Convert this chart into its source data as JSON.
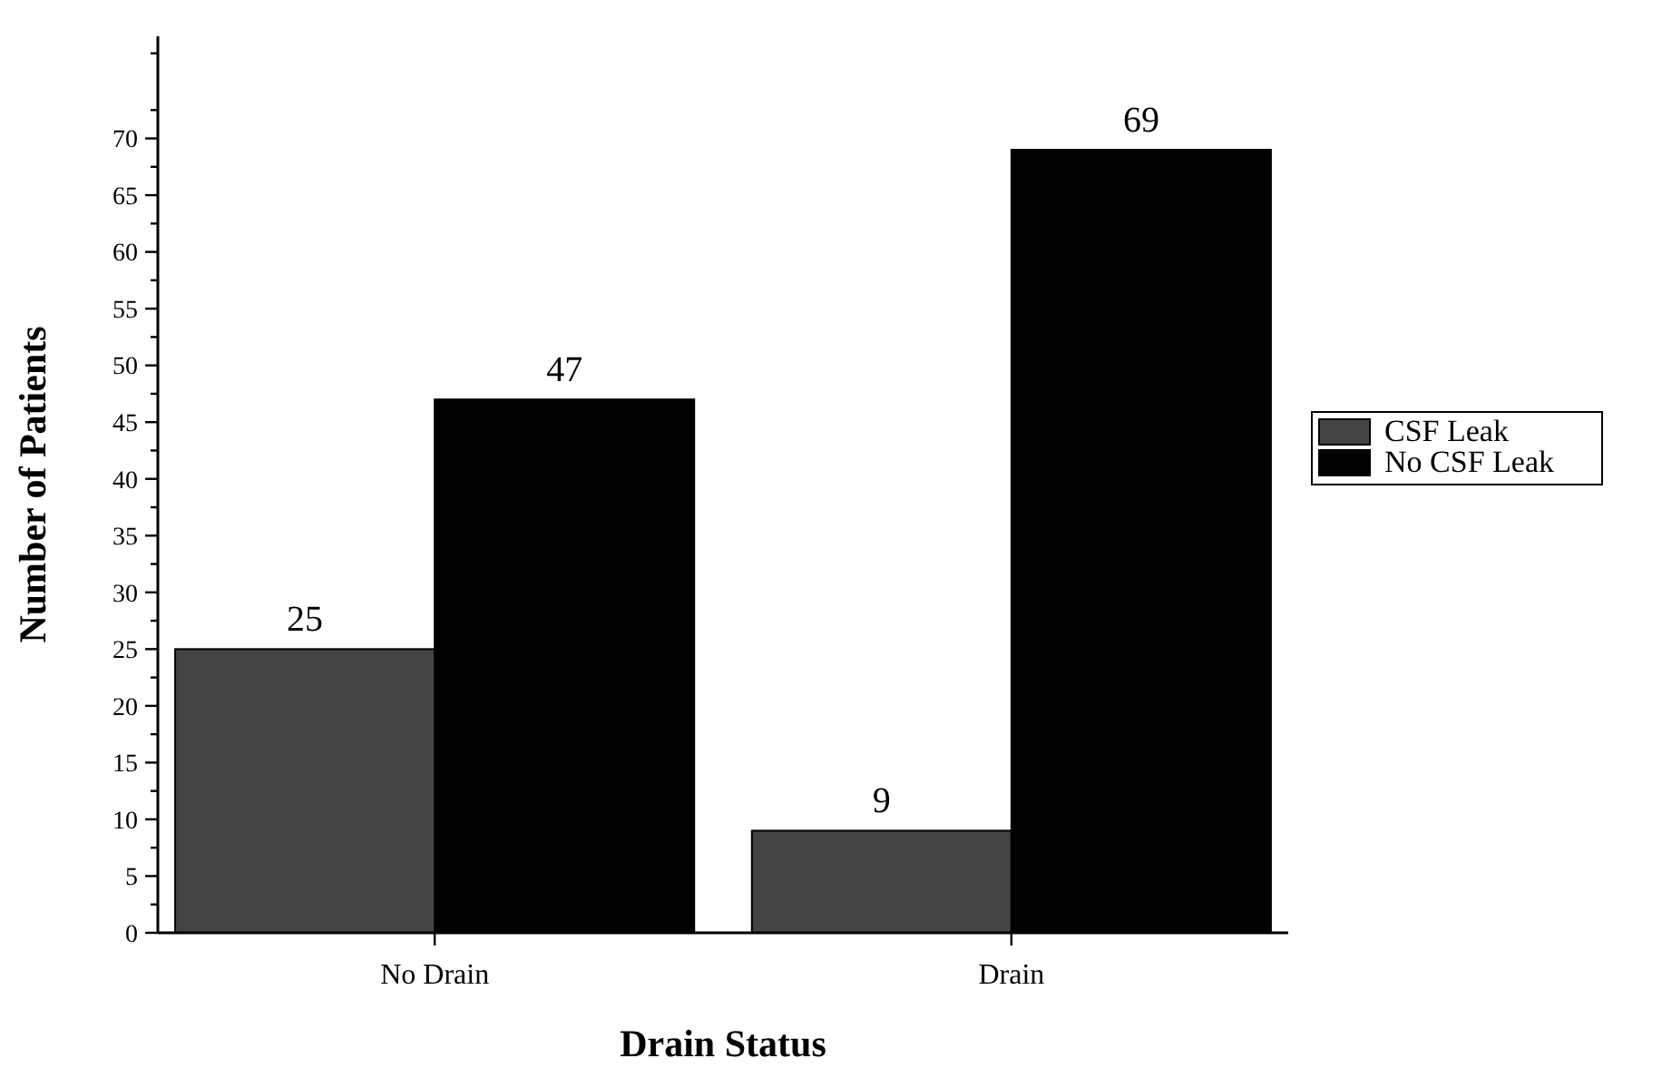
{
  "chart_data": {
    "type": "bar",
    "xlabel": "Drain Status",
    "ylabel": "Number of Patients",
    "categories": [
      "No Drain",
      "Drain"
    ],
    "series": [
      {
        "name": "CSF Leak",
        "color": "#444444",
        "values": [
          25,
          9
        ]
      },
      {
        "name": "No CSF Leak",
        "color": "#000000",
        "values": [
          47,
          69
        ]
      }
    ],
    "ylim": [
      0,
      79
    ],
    "yticks": [
      0,
      {
        "value": 2.5,
        "label": null
      },
      5,
      {
        "value": 7.5,
        "label": null
      },
      10,
      {
        "value": 12.5,
        "label": null
      },
      15,
      {
        "value": 17.5,
        "label": null
      },
      20,
      {
        "value": 22.5,
        "label": null
      },
      25,
      {
        "value": 27.5,
        "label": null
      },
      30,
      {
        "value": 32.5,
        "label": null
      },
      35,
      {
        "value": 37.5,
        "label": null
      },
      40,
      {
        "value": 42.5,
        "label": null
      },
      45,
      {
        "value": 47.5,
        "label": null
      },
      50,
      {
        "value": 52.5,
        "label": null
      },
      55,
      {
        "value": 57.5,
        "label": null
      },
      60,
      {
        "value": 62.5,
        "label": null
      },
      65,
      {
        "value": 67.5,
        "label": null
      },
      70,
      {
        "value": 72.5,
        "label": null
      },
      {
        "value": 77.5,
        "label": null
      }
    ],
    "data_labels": true,
    "legend": "right",
    "grid": false
  }
}
